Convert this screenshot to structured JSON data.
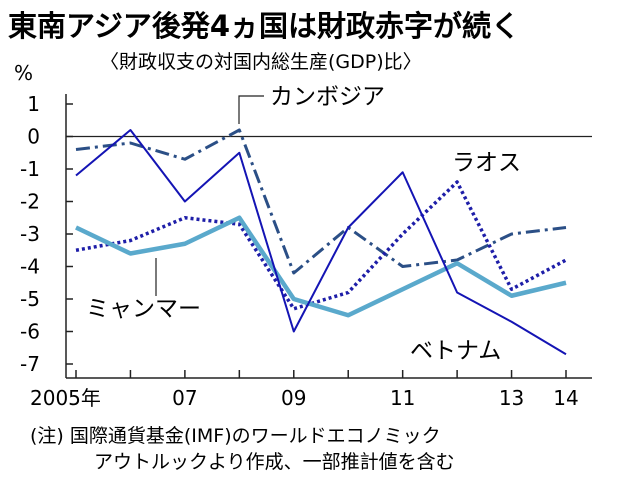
{
  "header": {
    "title": "東南アジア後発4ヵ国は財政赤字が続く",
    "subtitle": "〈財政収支の対国内総生産(GDP)比〉"
  },
  "footnote": {
    "line1": "(注) 国際通貨基金(IMF)のワールドエコノミック",
    "line2": "アウトルックより作成、一部推計値を含む"
  },
  "chart_data": {
    "type": "line",
    "title": "東南アジア後発4ヵ国は財政赤字が続く",
    "subtitle": "〈財政収支の対国内総生産(GDP)比〉",
    "ylabel": "%",
    "x": [
      2005,
      2006,
      2007,
      2008,
      2009,
      2010,
      2011,
      2012,
      2013,
      2014
    ],
    "xticks": [
      {
        "value": 2005,
        "label": "2005年"
      },
      {
        "value": 2007,
        "label": "07"
      },
      {
        "value": 2009,
        "label": "09"
      },
      {
        "value": 2011,
        "label": "11"
      },
      {
        "value": 2013,
        "label": "13"
      },
      {
        "value": 2014,
        "label": "14"
      }
    ],
    "yticks": [
      1,
      0,
      -1,
      -2,
      -3,
      -4,
      -5,
      -6,
      -7
    ],
    "ylim": [
      -7,
      1
    ],
    "xlim": [
      2005,
      2014
    ],
    "zero_line": true,
    "grid": false,
    "legend": "inline labels",
    "series": [
      {
        "name": "カンボジア",
        "style": "dashdot",
        "color": "#2b4f86",
        "values": [
          -0.4,
          -0.2,
          -0.7,
          0.2,
          -4.2,
          -2.8,
          -4.0,
          -3.8,
          -3.0,
          -2.8
        ]
      },
      {
        "name": "ラオス",
        "style": "dotted",
        "color": "#1e1ea8",
        "values": [
          -3.5,
          -3.2,
          -2.5,
          -2.7,
          -5.3,
          -4.8,
          -3.0,
          -1.4,
          -4.7,
          -3.8
        ]
      },
      {
        "name": "ミャンマー",
        "style": "solid-thick",
        "color": "#5aa9cc",
        "values": [
          -2.8,
          -3.6,
          -3.3,
          -2.5,
          -5.0,
          -5.5,
          -4.7,
          -3.9,
          -4.9,
          -4.5
        ]
      },
      {
        "name": "ベトナム",
        "style": "solid",
        "color": "#1414b4",
        "values": [
          -1.2,
          0.2,
          -2.0,
          -0.5,
          -6.0,
          -2.8,
          -1.1,
          -4.8,
          -5.7,
          -6.7
        ]
      }
    ]
  }
}
